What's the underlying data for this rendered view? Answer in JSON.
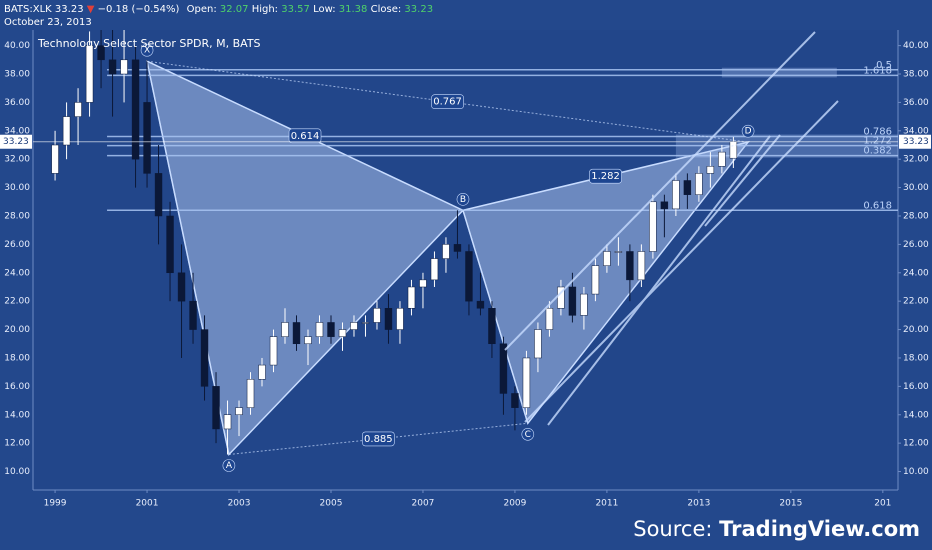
{
  "header": {
    "symbol": "BATS:XLK",
    "last": "33.23",
    "arrow": "▼",
    "change": "−0.18 (−0.54%)",
    "open_label": "Open:",
    "open": "32.07",
    "high_label": "High:",
    "high": "33.57",
    "low_label": "Low:",
    "low": "31.38",
    "close_label": "Close:",
    "close": "33.23",
    "date": "October 23, 2013"
  },
  "footer": {
    "source_label": "Source:",
    "source": "TradingView.com"
  },
  "chart_data": {
    "type": "candlestick",
    "title": "Technology Select Sector SPDR, M, BATS",
    "x": [
      1999.0,
      1999.25,
      1999.5,
      1999.75,
      2000.0,
      2000.25,
      2000.5,
      2000.75,
      2001.0,
      2001.25,
      2001.5,
      2001.75,
      2002.0,
      2002.25,
      2002.5,
      2002.75,
      2003.0,
      2003.25,
      2003.5,
      2003.75,
      2004.0,
      2004.25,
      2004.5,
      2004.75,
      2005.0,
      2005.25,
      2005.5,
      2005.75,
      2006.0,
      2006.25,
      2006.5,
      2006.75,
      2007.0,
      2007.25,
      2007.5,
      2007.75,
      2008.0,
      2008.25,
      2008.5,
      2008.75,
      2009.0,
      2009.25,
      2009.5,
      2009.75,
      2010.0,
      2010.25,
      2010.5,
      2010.75,
      2011.0,
      2011.25,
      2011.5,
      2011.75,
      2012.0,
      2012.25,
      2012.5,
      2012.75,
      2013.0,
      2013.25,
      2013.5,
      2013.75
    ],
    "open": [
      31,
      33,
      35,
      36,
      40,
      39,
      38,
      39,
      36,
      31,
      28,
      24,
      22,
      20,
      16,
      13,
      14,
      14.5,
      16.5,
      17.5,
      19.5,
      20.5,
      19,
      19.5,
      20.5,
      19.5,
      20,
      20.5,
      20.5,
      21.5,
      20,
      21.5,
      23,
      23.5,
      25,
      26,
      25.5,
      22,
      21.5,
      19,
      15.5,
      14.5,
      18,
      20,
      21.5,
      23,
      21,
      22.5,
      24.5,
      25.5,
      25.5,
      23.5,
      25.5,
      29,
      28.5,
      30.5,
      29.5,
      31,
      31.5,
      32.07
    ],
    "high": [
      34,
      36,
      37,
      41,
      41.5,
      41.5,
      41.5,
      40,
      39,
      33,
      29,
      26,
      24,
      21,
      17,
      15,
      15,
      17,
      18,
      20,
      21.5,
      21,
      20,
      21,
      21,
      20.5,
      21,
      21,
      22,
      22.5,
      22,
      23.5,
      24,
      25.5,
      26.5,
      28.4,
      26,
      24,
      22,
      19.5,
      16,
      18.5,
      20.5,
      22,
      23.5,
      24,
      23,
      25,
      26,
      26.5,
      26,
      26,
      29.5,
      29.5,
      31,
      31,
      31.5,
      32.5,
      33,
      33.57
    ],
    "low": [
      30.5,
      32,
      33,
      35,
      37,
      35,
      36,
      30,
      30,
      26,
      22,
      18,
      19,
      15,
      12,
      11.2,
      12.5,
      14,
      16,
      17,
      19,
      18.5,
      17.5,
      19,
      19,
      18.5,
      19.5,
      19.5,
      20,
      19,
      19,
      21,
      21.5,
      23,
      24,
      25,
      21,
      21,
      18,
      14,
      12.9,
      14,
      17,
      19.5,
      21,
      20.5,
      20,
      22,
      24,
      24.5,
      22,
      23,
      25,
      26.5,
      28,
      28.5,
      29,
      30,
      31,
      31.38
    ],
    "close": [
      33,
      35,
      36,
      40,
      39,
      38,
      39,
      32,
      31,
      28,
      24,
      22,
      20,
      16,
      13,
      14,
      14.5,
      16.5,
      17.5,
      19.5,
      20.5,
      19,
      19.5,
      20.5,
      19.5,
      20,
      20.5,
      20.5,
      21.5,
      20,
      21.5,
      23,
      23.5,
      25,
      26,
      25.5,
      22,
      21.5,
      19,
      15.5,
      14.5,
      18,
      20,
      21.5,
      23,
      21,
      22.5,
      24.5,
      25.5,
      25.5,
      23.5,
      25.5,
      29,
      28.5,
      30.5,
      29.5,
      31,
      31.5,
      32.5,
      33.23
    ],
    "up_color": "#ffffff",
    "down_color": "#0b1838",
    "last_price": {
      "value": 33.23,
      "label": "33.23"
    },
    "xlim": [
      1998.52,
      2017.33
    ],
    "ylim": [
      8.7,
      41.1
    ],
    "xticks": [
      1999,
      2001,
      2003,
      2005,
      2007,
      2009,
      2011,
      2013,
      2015,
      {
        "value": 2017,
        "label": "201"
      }
    ],
    "yticks": [
      {
        "value": 10,
        "label": "10.00"
      },
      {
        "value": 12,
        "label": "12.00"
      },
      {
        "value": 14,
        "label": "14.00"
      },
      {
        "value": 16,
        "label": "16.00"
      },
      {
        "value": 18,
        "label": "18.00"
      },
      {
        "value": 20,
        "label": "20.00"
      },
      {
        "value": 22,
        "label": "22.00"
      },
      {
        "value": 24,
        "label": "24.00"
      },
      {
        "value": 26,
        "label": "26.00"
      },
      {
        "value": 28,
        "label": "28.00"
      },
      {
        "value": 30,
        "label": "30.00"
      },
      {
        "value": 32,
        "label": "32.00"
      },
      {
        "value": 34,
        "label": "34.00"
      },
      {
        "value": 36,
        "label": "36.00"
      },
      {
        "value": 38,
        "label": "38.00"
      },
      {
        "value": 40,
        "label": "40.00"
      }
    ],
    "pattern": [
      {
        "label": "X",
        "x": 2001.0,
        "y": 38.9
      },
      {
        "label": "A",
        "x": 2002.78,
        "y": 11.2
      },
      {
        "label": "B",
        "x": 2007.87,
        "y": 28.4
      },
      {
        "label": "C",
        "x": 2009.28,
        "y": 13.4
      },
      {
        "label": "D",
        "x": 2014.07,
        "y": 33.2
      }
    ],
    "pattern_color": "#c8dcff",
    "ratios": [
      {
        "label": "0.614",
        "from": "X",
        "to": "B"
      },
      {
        "label": "0.885",
        "from": "A",
        "to": "C"
      },
      {
        "label": "1.282",
        "from": "B",
        "to": "D"
      },
      {
        "label": "0.767",
        "from": "X",
        "to": "D"
      }
    ],
    "fib_levels": [
      {
        "label": "0.5",
        "value": 38.3
      },
      {
        "label": "1.618",
        "value": 37.9
      },
      {
        "label": "0.786",
        "value": 33.6
      },
      {
        "label": "1.272",
        "value": 32.96
      },
      {
        "label": "0.382",
        "value": 32.25
      },
      {
        "label": "0.618",
        "value": 28.4
      }
    ]
  }
}
